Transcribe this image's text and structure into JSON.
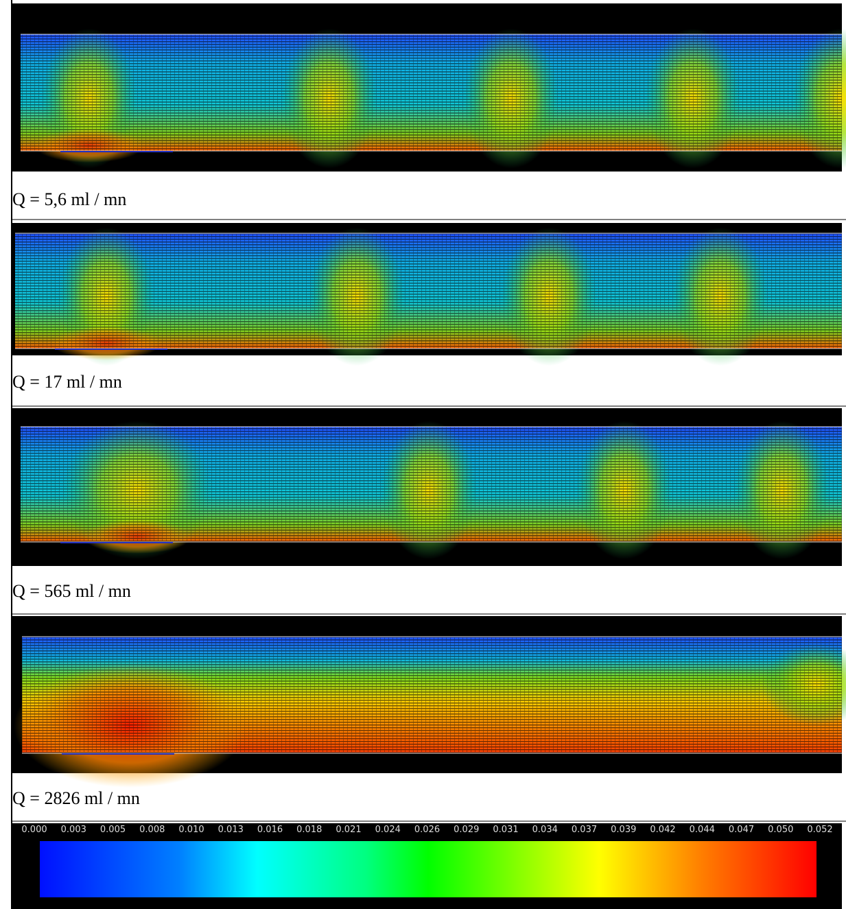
{
  "panels": [
    {
      "caption": "Q = 5,6 ml / mn"
    },
    {
      "caption": "Q = 17 ml / mn"
    },
    {
      "caption": "Q = 565 ml / mn"
    },
    {
      "caption": "Q = 2826 ml / mn"
    }
  ],
  "colorbar": {
    "labels": [
      "0.000",
      "0.003",
      "0.005",
      "0.008",
      "0.010",
      "0.013",
      "0.016",
      "0.018",
      "0.021",
      "0.024",
      "0.026",
      "0.029",
      "0.031",
      "0.034",
      "0.037",
      "0.039",
      "0.042",
      "0.044",
      "0.047",
      "0.050",
      "0.052"
    ]
  }
}
